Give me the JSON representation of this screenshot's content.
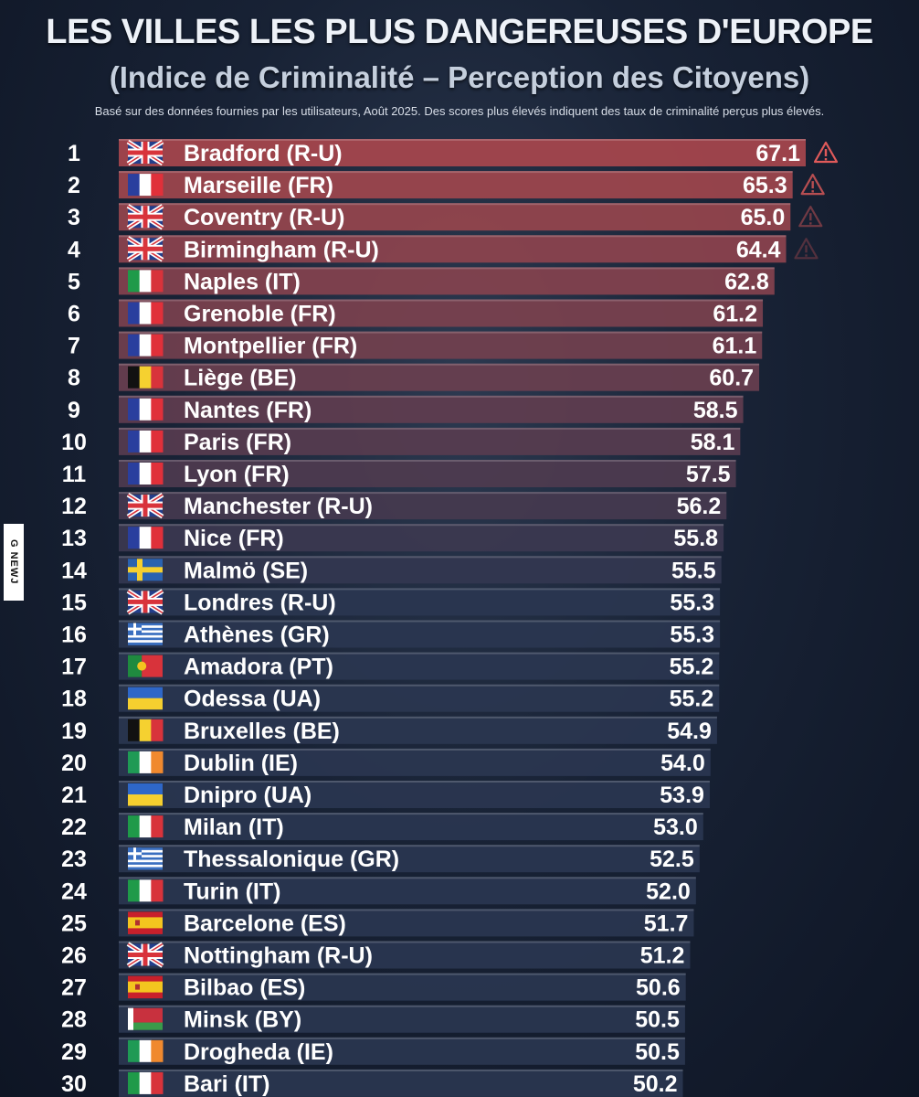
{
  "header": {
    "title": "LES VILLES LES PLUS DANGEREUSES D'EUROPE",
    "subtitle": "(Indice de Criminalité – Perception des Citoyens)",
    "note": "Basé sur des données fournies par les utilisateurs, Août 2025. Des scores plus élevés indiquent des taux de criminalité perçus plus élevés.",
    "watermark": "G NEWJ"
  },
  "colors": {
    "background": "#182235",
    "bar_top": "#a8474d",
    "bar_bottom": "#2a3650",
    "warning": "#e05a5a"
  },
  "chart_data": {
    "type": "bar",
    "orientation": "horizontal",
    "title": "LES VILLES LES PLUS DANGEREUSES D'EUROPE",
    "ranks": [
      "1",
      "2",
      "3",
      "4",
      "5",
      "6",
      "7",
      "8",
      "9",
      "10",
      "11",
      "12",
      "13",
      "14",
      "15",
      "16",
      "17",
      "18",
      "19",
      "20",
      "21",
      "22",
      "23",
      "24",
      "25",
      "26",
      "27",
      "28",
      "29",
      "30"
    ],
    "categories": [
      "Bradford (R-U)",
      "Marseille (FR)",
      "Coventry (R-U)",
      "Birmingham (R-U)",
      "Naples (IT)",
      "Grenoble (FR)",
      "Montpellier (FR)",
      "Liège (BE)",
      "Nantes (FR)",
      "Paris (FR)",
      "Lyon (FR)",
      "Manchester (R-U)",
      "Nice (FR)",
      "Malmö (SE)",
      "Londres (R-U)",
      "Athènes (GR)",
      "Amadora (PT)",
      "Odessa (UA)",
      "Bruxelles (BE)",
      "Dublin (IE)",
      "Dnipro (UA)",
      "Milan (IT)",
      "Thessalonique (GR)",
      "Turin (IT)",
      "Barcelone (ES)",
      "Nottingham (R-U)",
      "Bilbao (ES)",
      "Minsk (BY)",
      "Drogheda (IE)",
      "Bari (IT)"
    ],
    "value_labels": [
      "67.1",
      "65.3",
      "65.0",
      "64.4",
      "62.8",
      "61.2",
      "61.1",
      "60.7",
      "58.5",
      "58.1",
      "57.5",
      "56.2",
      "55.8",
      "55.5",
      "55.3",
      "55.3",
      "55.2",
      "55.2",
      "54.9",
      "54.0",
      "53.9",
      "53.0",
      "52.5",
      "52.0",
      "51.7",
      "51.2",
      "50.6",
      "50.5",
      "50.5",
      "50.2"
    ],
    "values": [
      67.1,
      65.3,
      65.0,
      64.4,
      62.8,
      61.2,
      61.1,
      60.7,
      58.5,
      58.1,
      57.5,
      56.2,
      55.8,
      55.5,
      55.3,
      55.3,
      55.2,
      55.2,
      54.9,
      54.0,
      53.9,
      53.0,
      52.5,
      52.0,
      51.7,
      51.2,
      50.6,
      50.5,
      50.5,
      50.2
    ],
    "flags": [
      "uk-flag",
      "france-flag",
      "uk-flag",
      "uk-flag",
      "italy-flag",
      "france-flag",
      "france-flag",
      "belgium-flag",
      "france-flag",
      "france-flag",
      "france-flag",
      "uk-flag",
      "france-flag",
      "sweden-flag",
      "uk-flag",
      "greece-flag",
      "portugal-flag",
      "ukraine-flag",
      "belgium-flag",
      "ireland-flag",
      "ukraine-flag",
      "italy-flag",
      "greece-flag",
      "italy-flag",
      "spain-flag",
      "uk-flag",
      "spain-flag",
      "belarus-flag",
      "ireland-flag",
      "italy-flag"
    ],
    "warning_icons": [
      "warning-icon",
      "warning-icon",
      "warning-icon",
      "warning-icon"
    ]
  }
}
